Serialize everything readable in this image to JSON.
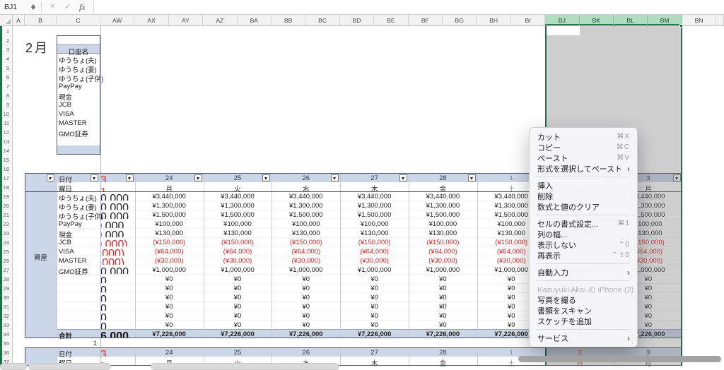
{
  "formula_bar": {
    "name_box": "BJ1",
    "cancel_icon": "×",
    "confirm_icon": "✓",
    "fx_label": "fx"
  },
  "sheet": {
    "column_headers": [
      "A",
      "B",
      "C",
      "AW",
      "AX",
      "AY",
      "AZ",
      "BA",
      "BB",
      "BC",
      "BD",
      "BE",
      "BF",
      "BG",
      "BH",
      "BI",
      "BJ",
      "BK",
      "BL",
      "BM",
      "BN"
    ],
    "selected_columns": [
      "BJ",
      "BK",
      "BL",
      "BM"
    ],
    "row_count": 37,
    "month_label": "2月",
    "account_box": {
      "header": "口座名",
      "items": [
        "ゆうちょ(夫)",
        "ゆうちょ(妻)",
        "ゆうちょ(子供)",
        "PayPay",
        "現金",
        "JCB",
        "VISA",
        "MASTER",
        "GMO証券"
      ]
    },
    "asset_table": {
      "side_label": "資産",
      "date_label": "日付",
      "weekday_label": "曜日",
      "clipped_day": {
        "date": "23",
        "weekday": "日",
        "type": "sun"
      },
      "days": [
        {
          "date": "24",
          "weekday": "月",
          "type": "weekday"
        },
        {
          "date": "25",
          "weekday": "火",
          "type": "weekday"
        },
        {
          "date": "26",
          "weekday": "水",
          "type": "weekday"
        },
        {
          "date": "27",
          "weekday": "木",
          "type": "weekday"
        },
        {
          "date": "28",
          "weekday": "金",
          "type": "weekday"
        },
        {
          "date": "1",
          "weekday": "土",
          "type": "sat"
        },
        {
          "date": "2",
          "weekday": "日",
          "type": "sun"
        },
        {
          "date": "3",
          "weekday": "月",
          "type": "weekday"
        }
      ],
      "rows": [
        {
          "label": "ゆうちょ(夫)",
          "value": "¥3,440,000",
          "negative": false
        },
        {
          "label": "ゆうちょ(妻)",
          "value": "¥1,300,000",
          "negative": false
        },
        {
          "label": "ゆうちょ(子供)",
          "value": "¥1,500,000",
          "negative": false
        },
        {
          "label": "PayPay",
          "value": "¥100,000",
          "negative": false
        },
        {
          "label": "現金",
          "value": "¥130,000",
          "negative": false
        },
        {
          "label": "JCB",
          "value": "(¥150,000)",
          "negative": true
        },
        {
          "label": "VISA",
          "value": "(¥64,000)",
          "negative": true
        },
        {
          "label": "MASTER",
          "value": "(¥30,000)",
          "negative": true
        },
        {
          "label": "GMO証券",
          "value": "¥1,000,000",
          "negative": false
        }
      ],
      "empty_row_count": 6,
      "empty_value": "¥0",
      "total_label": "合計",
      "total_value": "¥7,226,000"
    },
    "row35_value": "1",
    "bottom_table": {
      "date_label": "日付",
      "weekday_label": "曜日"
    }
  },
  "context_menu": {
    "items": [
      {
        "label": "カット",
        "shortcut": "⌘X"
      },
      {
        "label": "コピー",
        "shortcut": "⌘C"
      },
      {
        "label": "ペースト",
        "shortcut": "⌘V"
      },
      {
        "label": "形式を選択してペースト",
        "submenu": true
      },
      {
        "type": "separator"
      },
      {
        "label": "挿入"
      },
      {
        "label": "削除"
      },
      {
        "label": "数式と値のクリア"
      },
      {
        "type": "separator"
      },
      {
        "label": "セルの書式設定...",
        "shortcut": "⌘1"
      },
      {
        "label": "列の幅..."
      },
      {
        "label": "表示しない",
        "shortcut": "⌃0"
      },
      {
        "label": "再表示",
        "shortcut": "⌃⇧0"
      },
      {
        "type": "separator"
      },
      {
        "label": "自動入力",
        "submenu": true
      },
      {
        "type": "separator"
      },
      {
        "label": "Kazuyuki Akai の iPhone (2)",
        "disabled": true
      },
      {
        "label": "写真を撮る"
      },
      {
        "label": "書類をスキャン"
      },
      {
        "label": "スケッチを追加"
      },
      {
        "type": "separator"
      },
      {
        "label": "サービス",
        "submenu": true
      }
    ]
  },
  "colors": {
    "selection_green": "#1f7044",
    "header_green": "#b0dcc2",
    "header_blue": "#ccd6e9",
    "negative_red": "#dd2222",
    "sunday_red": "#d63131",
    "saturday_blue": "#6b87c8",
    "date_text": "#30364a"
  }
}
